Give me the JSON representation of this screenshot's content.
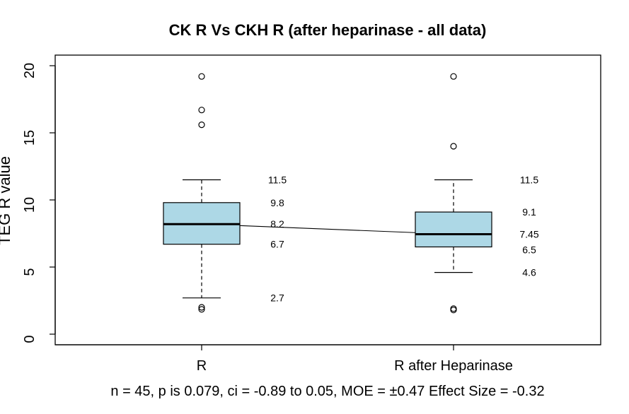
{
  "chart_data": {
    "type": "box",
    "title": "CK R Vs CKH R (after heparinase - all data)",
    "xlabel": "",
    "ylabel": "TEG R value",
    "ylim": [
      0,
      20
    ],
    "yticks": [
      "0",
      "5",
      "10",
      "15",
      "20"
    ],
    "categories": [
      "R",
      "R after Heparinase"
    ],
    "box_fill": "#add8e6",
    "series": [
      {
        "whisker_low": 2.7,
        "q1": 6.7,
        "median": 8.2,
        "q3": 9.8,
        "whisker_high": 11.5,
        "outliers": [
          1.85,
          2.0,
          15.6,
          16.7,
          19.2
        ],
        "labels": [
          "11.5",
          "9.8",
          "8.2",
          "6.7",
          "2.7"
        ]
      },
      {
        "whisker_low": 4.6,
        "q1": 6.5,
        "median": 7.45,
        "q3": 9.1,
        "whisker_high": 11.5,
        "outliers": [
          1.8,
          1.9,
          14.0,
          19.2
        ],
        "labels": [
          "11.5",
          "9.1",
          "7.45",
          "6.5",
          "4.6"
        ]
      }
    ],
    "connector": {
      "from_median": 8.2,
      "to_median": 7.45
    },
    "footer": "n = 45, p is 0.079, ci = -0.89 to 0.05, MOE = ±0.47 Effect Size = -0.32"
  }
}
